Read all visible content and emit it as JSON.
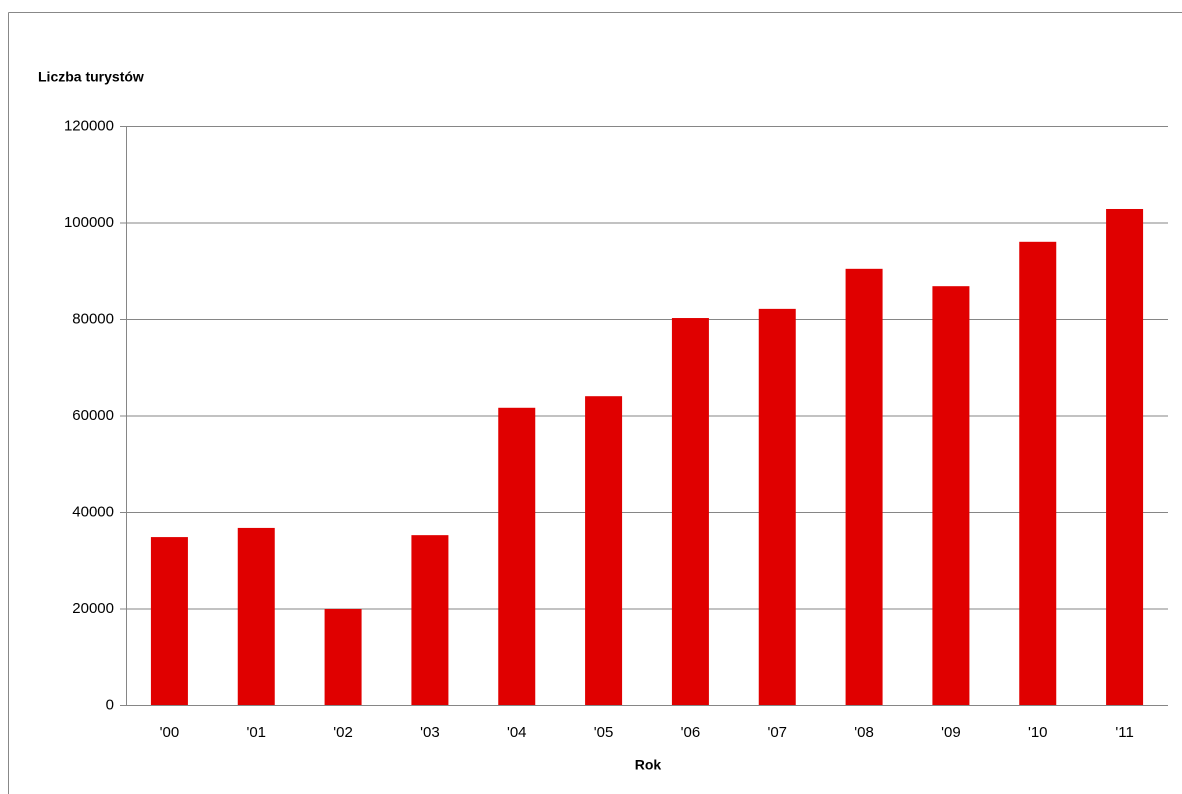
{
  "chart_data": {
    "type": "bar",
    "ylabel": "Liczba turystów",
    "xlabel": "Rok",
    "categories": [
      "'00",
      "'01",
      "'02",
      "'03",
      "'04",
      "'05",
      "'06",
      "'07",
      "'08",
      "'09",
      "'10",
      "'11"
    ],
    "values": [
      34800,
      36700,
      19900,
      35200,
      61600,
      64000,
      80200,
      82100,
      90400,
      86800,
      96000,
      102800
    ],
    "color": "#e00000",
    "ylim": [
      0,
      120000
    ],
    "yticks": [
      0,
      20000,
      40000,
      60000,
      80000,
      100000,
      120000
    ],
    "grid": true
  }
}
